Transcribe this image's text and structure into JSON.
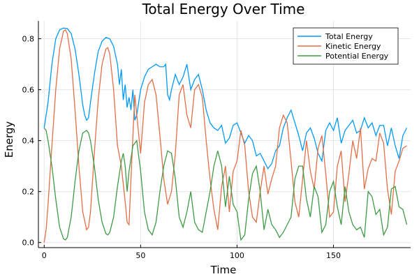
{
  "chart_data": {
    "type": "line",
    "title": "Total Energy Over Time",
    "xlabel": "Time",
    "ylabel": "Energy",
    "xlim": [
      -3,
      190
    ],
    "ylim": [
      -0.02,
      0.87
    ],
    "xticks": [
      0,
      50,
      100,
      150
    ],
    "yticks": [
      0.0,
      0.2,
      0.4,
      0.6,
      0.8
    ],
    "xtick_labels": [
      "0",
      "50",
      "100",
      "150"
    ],
    "ytick_labels": [
      "0.0",
      "0.2",
      "0.4",
      "0.6",
      "0.8"
    ],
    "grid": true,
    "legend_position": "top-right",
    "series": [
      {
        "name": "Total Energy",
        "color": "#009AFA",
        "x": [
          0,
          2,
          4,
          6,
          8,
          10,
          12,
          14,
          16,
          18,
          20,
          21,
          22,
          23,
          24,
          26,
          28,
          30,
          32,
          34,
          36,
          38,
          39,
          40,
          41,
          42,
          43,
          44,
          45,
          46,
          47,
          48,
          50,
          52,
          54,
          56,
          58,
          60,
          62,
          63,
          64,
          65,
          66,
          68,
          70,
          72,
          74,
          76,
          78,
          80,
          82,
          84,
          86,
          88,
          90,
          92,
          94,
          96,
          98,
          100,
          102,
          104,
          106,
          108,
          110,
          112,
          114,
          116,
          118,
          120,
          122,
          124,
          126,
          128,
          130,
          132,
          134,
          136,
          138,
          140,
          142,
          144,
          146,
          148,
          150,
          152,
          154,
          156,
          158,
          160,
          162,
          164,
          166,
          168,
          170,
          172,
          174,
          176,
          178,
          180,
          182,
          184,
          186,
          188
        ],
        "y": [
          0.45,
          0.55,
          0.7,
          0.8,
          0.835,
          0.842,
          0.84,
          0.82,
          0.76,
          0.66,
          0.54,
          0.5,
          0.48,
          0.49,
          0.55,
          0.66,
          0.75,
          0.79,
          0.805,
          0.8,
          0.77,
          0.7,
          0.62,
          0.68,
          0.56,
          0.62,
          0.53,
          0.57,
          0.52,
          0.6,
          0.48,
          0.5,
          0.6,
          0.65,
          0.68,
          0.69,
          0.7,
          0.69,
          0.69,
          0.7,
          0.58,
          0.56,
          0.6,
          0.66,
          0.62,
          0.65,
          0.7,
          0.6,
          0.64,
          0.66,
          0.6,
          0.52,
          0.47,
          0.45,
          0.44,
          0.46,
          0.39,
          0.41,
          0.46,
          0.47,
          0.43,
          0.39,
          0.42,
          0.4,
          0.34,
          0.35,
          0.32,
          0.29,
          0.31,
          0.36,
          0.38,
          0.45,
          0.49,
          0.52,
          0.47,
          0.42,
          0.36,
          0.43,
          0.45,
          0.41,
          0.35,
          0.32,
          0.44,
          0.47,
          0.44,
          0.49,
          0.39,
          0.44,
          0.46,
          0.48,
          0.43,
          0.44,
          0.49,
          0.45,
          0.47,
          0.42,
          0.46,
          0.46,
          0.38,
          0.45,
          0.38,
          0.33,
          0.42,
          0.45
        ]
      },
      {
        "name": "Kinetic Energy",
        "color": "#E26F46",
        "x": [
          0,
          1,
          2,
          4,
          6,
          8,
          10,
          11,
          12,
          14,
          16,
          18,
          20,
          22,
          23,
          24,
          26,
          28,
          30,
          32,
          33,
          34,
          36,
          38,
          40,
          42,
          43,
          44,
          45,
          46,
          47,
          48,
          50,
          52,
          54,
          56,
          58,
          60,
          62,
          64,
          66,
          68,
          70,
          72,
          74,
          76,
          78,
          80,
          82,
          84,
          86,
          88,
          90,
          92,
          94,
          96,
          98,
          100,
          102,
          104,
          106,
          108,
          110,
          112,
          114,
          116,
          118,
          120,
          122,
          124,
          126,
          128,
          130,
          132,
          134,
          136,
          138,
          140,
          142,
          144,
          146,
          148,
          150,
          152,
          154,
          156,
          158,
          160,
          162,
          164,
          166,
          168,
          170,
          172,
          174,
          176,
          178,
          180,
          182,
          184,
          186,
          188
        ],
        "y": [
          0.0,
          0.05,
          0.15,
          0.38,
          0.6,
          0.76,
          0.83,
          0.835,
          0.82,
          0.72,
          0.52,
          0.3,
          0.12,
          0.05,
          0.06,
          0.12,
          0.35,
          0.56,
          0.7,
          0.76,
          0.765,
          0.74,
          0.6,
          0.38,
          0.3,
          0.16,
          0.08,
          0.07,
          0.25,
          0.42,
          0.58,
          0.5,
          0.35,
          0.55,
          0.62,
          0.64,
          0.58,
          0.42,
          0.25,
          0.15,
          0.2,
          0.35,
          0.58,
          0.62,
          0.5,
          0.45,
          0.6,
          0.62,
          0.57,
          0.4,
          0.25,
          0.13,
          0.05,
          0.22,
          0.3,
          0.12,
          0.28,
          0.32,
          0.44,
          0.38,
          0.2,
          0.1,
          0.08,
          0.2,
          0.3,
          0.19,
          0.25,
          0.3,
          0.45,
          0.5,
          0.47,
          0.32,
          0.16,
          0.1,
          0.25,
          0.4,
          0.28,
          0.21,
          0.37,
          0.42,
          0.27,
          0.1,
          0.12,
          0.3,
          0.36,
          0.16,
          0.27,
          0.4,
          0.33,
          0.45,
          0.21,
          0.29,
          0.33,
          0.32,
          0.43,
          0.39,
          0.21,
          0.11,
          0.28,
          0.32,
          0.37,
          0.38
        ]
      },
      {
        "name": "Potential Energy",
        "color": "#3E9B45",
        "x": [
          0,
          1,
          2,
          4,
          6,
          8,
          10,
          11,
          12,
          14,
          16,
          18,
          20,
          22,
          23,
          24,
          26,
          28,
          30,
          32,
          33,
          34,
          36,
          38,
          40,
          41,
          42,
          43,
          44,
          46,
          48,
          50,
          52,
          54,
          56,
          58,
          60,
          62,
          64,
          66,
          68,
          70,
          72,
          74,
          76,
          78,
          80,
          82,
          84,
          86,
          88,
          90,
          92,
          94,
          96,
          98,
          100,
          102,
          104,
          106,
          108,
          110,
          112,
          114,
          116,
          118,
          120,
          122,
          124,
          126,
          128,
          130,
          132,
          134,
          136,
          138,
          140,
          142,
          144,
          146,
          148,
          150,
          152,
          154,
          156,
          158,
          160,
          162,
          164,
          166,
          168,
          170,
          172,
          174,
          176,
          178,
          180,
          182,
          184,
          186,
          188
        ],
        "y": [
          0.45,
          0.44,
          0.4,
          0.3,
          0.17,
          0.06,
          0.015,
          0.01,
          0.02,
          0.1,
          0.24,
          0.36,
          0.43,
          0.44,
          0.43,
          0.4,
          0.3,
          0.17,
          0.08,
          0.035,
          0.03,
          0.04,
          0.1,
          0.22,
          0.32,
          0.35,
          0.3,
          0.2,
          0.28,
          0.38,
          0.4,
          0.28,
          0.12,
          0.05,
          0.03,
          0.08,
          0.2,
          0.3,
          0.36,
          0.35,
          0.25,
          0.1,
          0.06,
          0.12,
          0.2,
          0.08,
          0.05,
          0.04,
          0.12,
          0.2,
          0.3,
          0.36,
          0.3,
          0.14,
          0.26,
          0.15,
          0.12,
          0.01,
          0.03,
          0.17,
          0.27,
          0.3,
          0.2,
          0.05,
          0.13,
          0.07,
          0.05,
          0.02,
          0.04,
          0.07,
          0.1,
          0.25,
          0.3,
          0.3,
          0.17,
          0.1,
          0.22,
          0.18,
          0.04,
          0.07,
          0.2,
          0.24,
          0.14,
          0.07,
          0.22,
          0.12,
          0.07,
          0.05,
          0.06,
          0.02,
          0.2,
          0.18,
          0.11,
          0.13,
          0.03,
          0.06,
          0.21,
          0.22,
          0.14,
          0.13,
          0.07
        ]
      }
    ]
  }
}
